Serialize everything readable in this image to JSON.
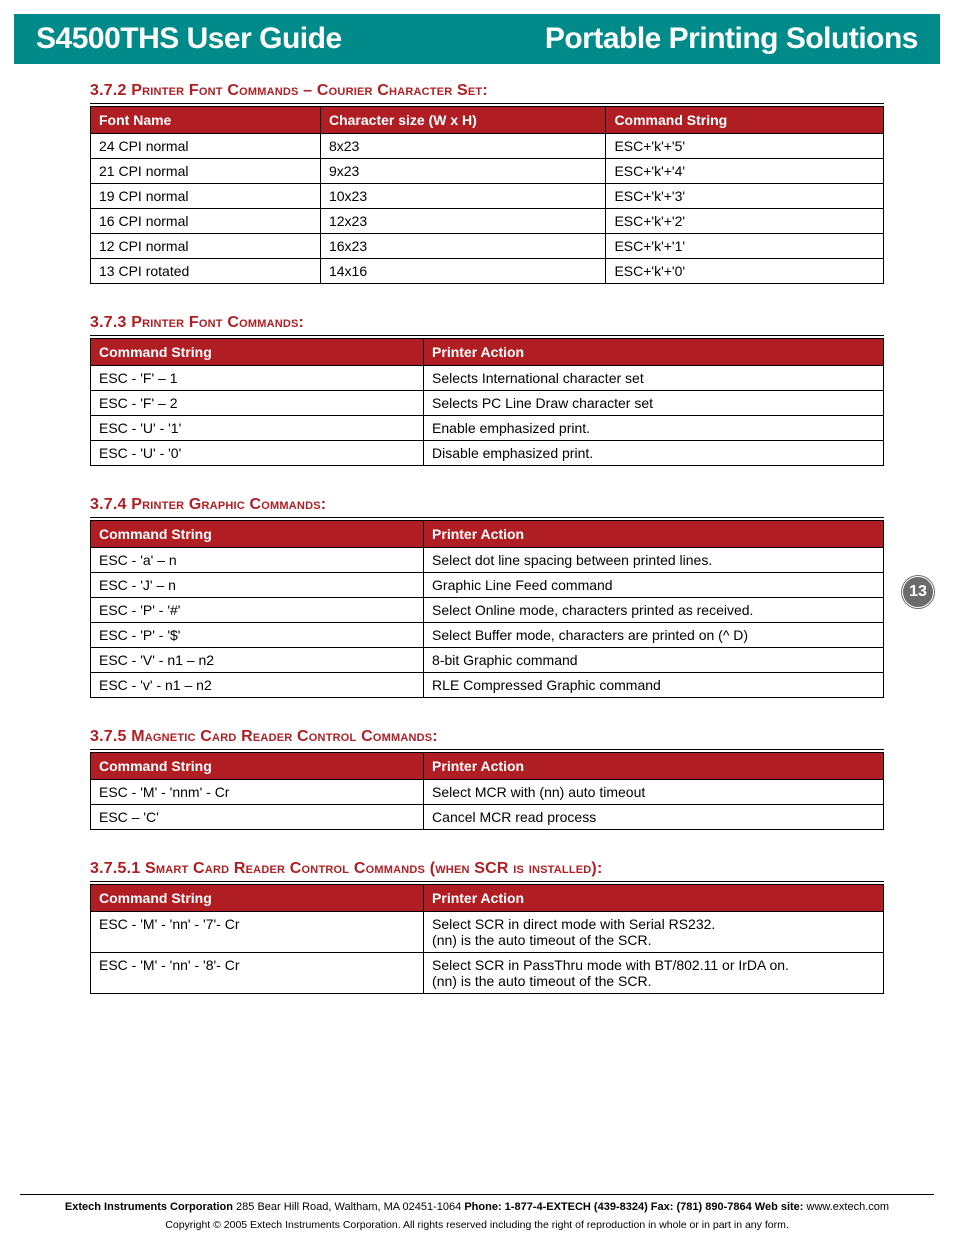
{
  "header": {
    "left": "S4500THS User Guide",
    "right": "Portable Printing Solutions"
  },
  "page_number": "13",
  "sections": [
    {
      "heading": "3.7.2 Printer Font Commands – Courier Character Set:",
      "columns": [
        "Font Name",
        "Character size (W x H)",
        "Command String"
      ],
      "col_widths": [
        "29%",
        "36%",
        "35%"
      ],
      "rows": [
        [
          "24 CPI normal",
          "8x23",
          "ESC+'k'+'5'"
        ],
        [
          "21 CPI normal",
          "9x23",
          "ESC+'k'+'4'"
        ],
        [
          "19 CPI normal",
          "10x23",
          "ESC+'k'+'3'"
        ],
        [
          "16 CPI normal",
          "12x23",
          "ESC+'k'+'2'"
        ],
        [
          "12 CPI normal",
          "16x23",
          "ESC+'k'+'1'"
        ],
        [
          "13 CPI rotated",
          "14x16",
          "ESC+'k'+'0'"
        ]
      ]
    },
    {
      "heading": "3.7.3 Printer Font Commands:",
      "columns": [
        "Command String",
        "Printer Action"
      ],
      "col_widths": [
        "42%",
        "58%"
      ],
      "rows": [
        [
          "ESC - 'F' – 1",
          "Selects International character set"
        ],
        [
          "ESC - 'F' – 2",
          "Selects PC Line Draw character set"
        ],
        [
          "ESC - 'U' - '1'",
          "Enable emphasized print."
        ],
        [
          "ESC - 'U' - '0'",
          "Disable emphasized print."
        ]
      ]
    },
    {
      "heading": "3.7.4 Printer Graphic Commands:",
      "columns": [
        "Command String",
        "Printer Action"
      ],
      "col_widths": [
        "42%",
        "58%"
      ],
      "rows": [
        [
          "ESC - 'a' – n",
          "Select dot line spacing between printed lines."
        ],
        [
          "ESC - 'J' – n",
          "Graphic Line Feed command"
        ],
        [
          "ESC - 'P' - '#'",
          "Select Online mode, characters printed as received."
        ],
        [
          "ESC - 'P' - '$'",
          "Select Buffer mode, characters are printed on (^ D)"
        ],
        [
          "ESC - 'V' - n1 – n2",
          "8-bit Graphic command"
        ],
        [
          "ESC - 'v' - n1 – n2",
          "RLE Compressed Graphic command"
        ]
      ]
    },
    {
      "heading": "3.7.5 Magnetic Card Reader Control Commands:",
      "columns": [
        "Command String",
        "Printer Action"
      ],
      "col_widths": [
        "42%",
        "58%"
      ],
      "rows": [
        [
          "ESC - 'M' - 'nnm' - Cr",
          "Select MCR  with (nn) auto timeout"
        ],
        [
          "ESC – 'C'",
          "Cancel MCR read process"
        ]
      ]
    },
    {
      "heading": "3.7.5.1 Smart Card Reader Control Commands (when SCR is installed):",
      "columns": [
        "Command String",
        "Printer Action"
      ],
      "col_widths": [
        "42%",
        "58%"
      ],
      "rows": [
        [
          "ESC - 'M' - 'nn' - '7'- Cr",
          "Select SCR in direct mode with Serial RS232.\n(nn) is the auto timeout of the SCR."
        ],
        [
          "ESC - 'M' - 'nn' - '8'- Cr",
          "Select SCR in PassThru mode with BT/802.11 or IrDA on.\n(nn) is the auto timeout of the SCR."
        ]
      ]
    }
  ],
  "footer": {
    "company": "Extech Instruments Corporation",
    "address": " 285 Bear Hill Road, Waltham, MA 02451-1064 ",
    "phone_label": "Phone: ",
    "phone": "1-877-4-EXTECH (439-8324) ",
    "fax_label": "Fax: ",
    "fax": "(781) 890-7864 ",
    "web_label": "Web site: ",
    "web": "www.extech.com",
    "copyright": "Copyright © 2005 Extech Instruments Corporation. All rights reserved including the right of reproduction in whole or in part in any form."
  },
  "colors": {
    "header_bg": "#008b8b",
    "accent_red": "#b01e23",
    "badge_bg": "#6b6b6b"
  }
}
